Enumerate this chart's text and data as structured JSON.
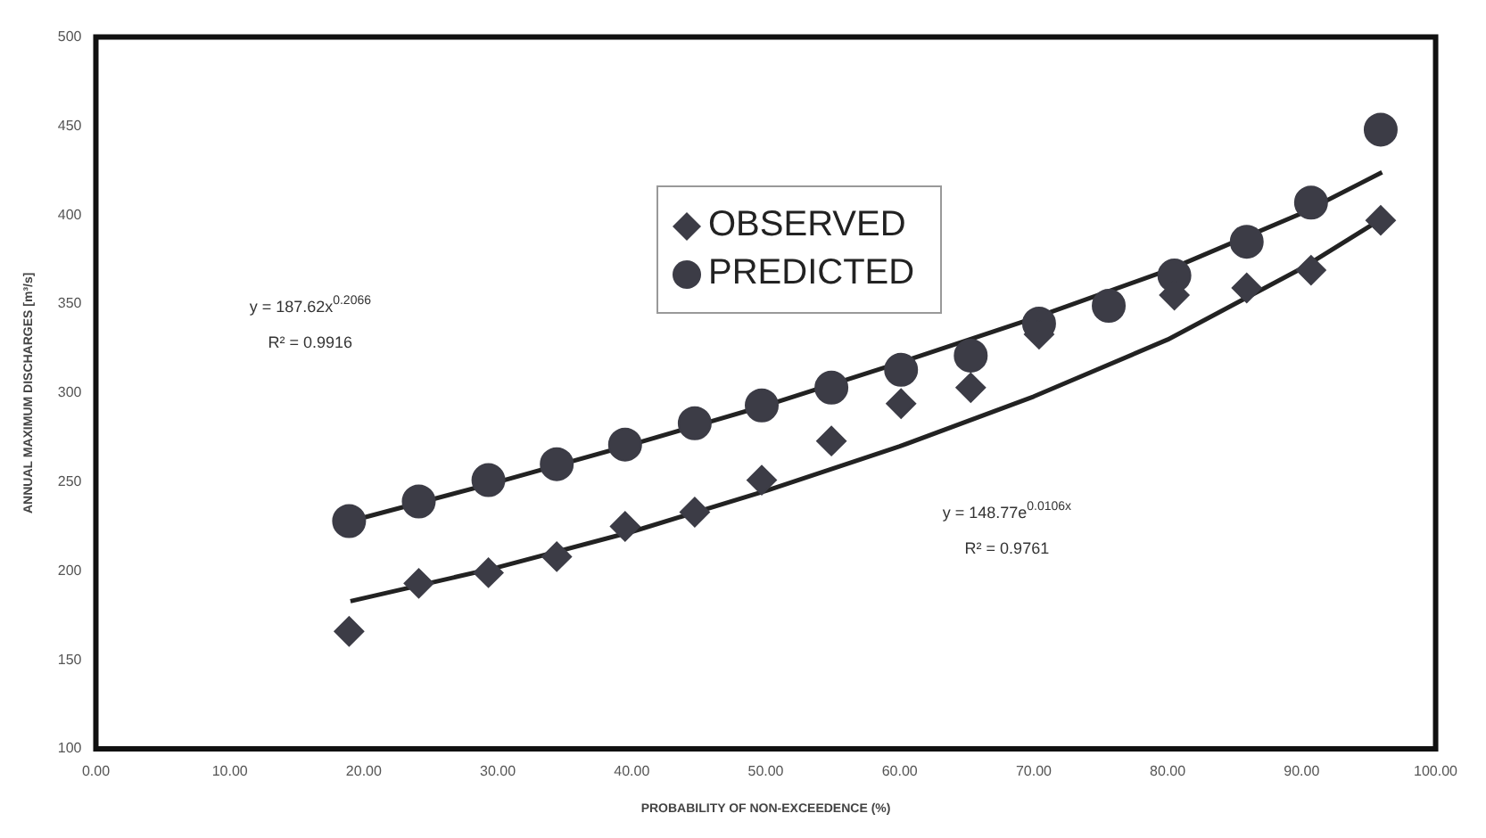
{
  "chart_data": {
    "type": "scatter",
    "xlabel": "PROBABILITY OF NON-EXCEEDENCE (%)",
    "ylabel": "ANNUAL MAXIMUM DISCHARGES [m³/s]",
    "xlim": [
      0,
      100
    ],
    "ylim": [
      100,
      500
    ],
    "xticks": [
      {
        "value": 0,
        "label": "0.00"
      },
      {
        "value": 10,
        "label": "10.00"
      },
      {
        "value": 20,
        "label": "20.00"
      },
      {
        "value": 30,
        "label": "30.00"
      },
      {
        "value": 40,
        "label": "40.00"
      },
      {
        "value": 50,
        "label": "50.00"
      },
      {
        "value": 60,
        "label": "60.00"
      },
      {
        "value": 70,
        "label": "70.00"
      },
      {
        "value": 80,
        "label": "80.00"
      },
      {
        "value": 90,
        "label": "90.00"
      },
      {
        "value": 100,
        "label": "100.00"
      }
    ],
    "yticks": [
      100,
      150,
      200,
      250,
      300,
      350,
      400,
      450,
      500
    ],
    "grid": false,
    "legend": "top",
    "series": [
      {
        "name": "OBSERVED",
        "marker": "diamond",
        "color": "#3c3c46",
        "x": [
          18.9,
          24.1,
          29.3,
          34.4,
          39.5,
          44.7,
          49.7,
          54.9,
          60.1,
          65.3,
          70.4,
          75.6,
          80.5,
          85.9,
          90.7,
          95.9
        ],
        "values": [
          166,
          193,
          199,
          208,
          225,
          233,
          251,
          273,
          294,
          303,
          333,
          null,
          355,
          359,
          369,
          397
        ]
      },
      {
        "name": "PREDICTED",
        "marker": "circle",
        "color": "#3c3c46",
        "x": [
          18.9,
          24.1,
          29.3,
          34.4,
          39.5,
          44.7,
          49.7,
          54.9,
          60.1,
          65.3,
          70.4,
          75.6,
          80.5,
          85.9,
          90.7,
          95.9
        ],
        "values": [
          228,
          239,
          251,
          260,
          271,
          283,
          293,
          303,
          313,
          321,
          339,
          349,
          366,
          385,
          407,
          448
        ]
      },
      {
        "type": "line",
        "marker": "none",
        "color": "#222222",
        "x": [
          19,
          30,
          40,
          50,
          60,
          70,
          80,
          90,
          96
        ],
        "values": [
          228,
          250,
          271,
          293,
          317,
          342,
          369,
          401,
          424
        ]
      },
      {
        "type": "line",
        "marker": "none",
        "color": "#222222",
        "x": [
          19,
          30,
          40,
          50,
          60,
          70,
          80,
          90,
          96
        ],
        "values": [
          183,
          202,
          222,
          245,
          270,
          298,
          330,
          370,
          398
        ]
      }
    ],
    "annotations": [
      "y = 187.62x$^{0.2066}$",
      "R² = 0.9916",
      "y = 148.77e$^{0.0106x}$",
      "R² = 0.9761"
    ]
  }
}
